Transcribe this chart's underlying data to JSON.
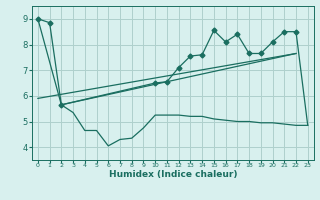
{
  "xlabel": "Humidex (Indice chaleur)",
  "background_color": "#d8f0ee",
  "grid_color": "#aed0cc",
  "line_color": "#1a6e60",
  "xlim": [
    -0.5,
    23.5
  ],
  "ylim": [
    3.5,
    9.5
  ],
  "yticks": [
    4,
    5,
    6,
    7,
    8,
    9
  ],
  "xticks": [
    0,
    1,
    2,
    3,
    4,
    5,
    6,
    7,
    8,
    9,
    10,
    11,
    12,
    13,
    14,
    15,
    16,
    17,
    18,
    19,
    20,
    21,
    22,
    23
  ],
  "series1_x": [
    0,
    1,
    2,
    10,
    11,
    12,
    13,
    14,
    15,
    16,
    17,
    18,
    19,
    20,
    21,
    22,
    23
  ],
  "series1_y": [
    9.0,
    8.85,
    5.65,
    6.5,
    6.55,
    7.1,
    7.55,
    7.6,
    8.55,
    8.1,
    8.4,
    7.65,
    7.65,
    8.1,
    8.5,
    8.5,
    4.85
  ],
  "series2_x": [
    0,
    2,
    3,
    4,
    5,
    6,
    7,
    8,
    9,
    10,
    11,
    12,
    13,
    14,
    15,
    16,
    17,
    18,
    19,
    20,
    21,
    22,
    23
  ],
  "series2_y": [
    9.0,
    5.65,
    5.35,
    4.65,
    4.65,
    4.05,
    4.3,
    4.35,
    4.75,
    5.25,
    5.25,
    5.25,
    5.2,
    5.2,
    5.1,
    5.05,
    5.0,
    5.0,
    4.95,
    4.95,
    4.9,
    4.85,
    4.85
  ],
  "series3_x": [
    0,
    22
  ],
  "series3_y": [
    5.9,
    7.65
  ],
  "series4_x": [
    2,
    22
  ],
  "series4_y": [
    5.65,
    7.65
  ],
  "markers_x": [
    0,
    1,
    2,
    10,
    11,
    12,
    13,
    14,
    15,
    16,
    17,
    18,
    19,
    20,
    21,
    22
  ],
  "markers_y": [
    9.0,
    8.85,
    5.65,
    6.5,
    6.55,
    7.1,
    7.55,
    7.6,
    8.55,
    8.1,
    8.4,
    7.65,
    7.65,
    8.1,
    8.5,
    8.5
  ]
}
